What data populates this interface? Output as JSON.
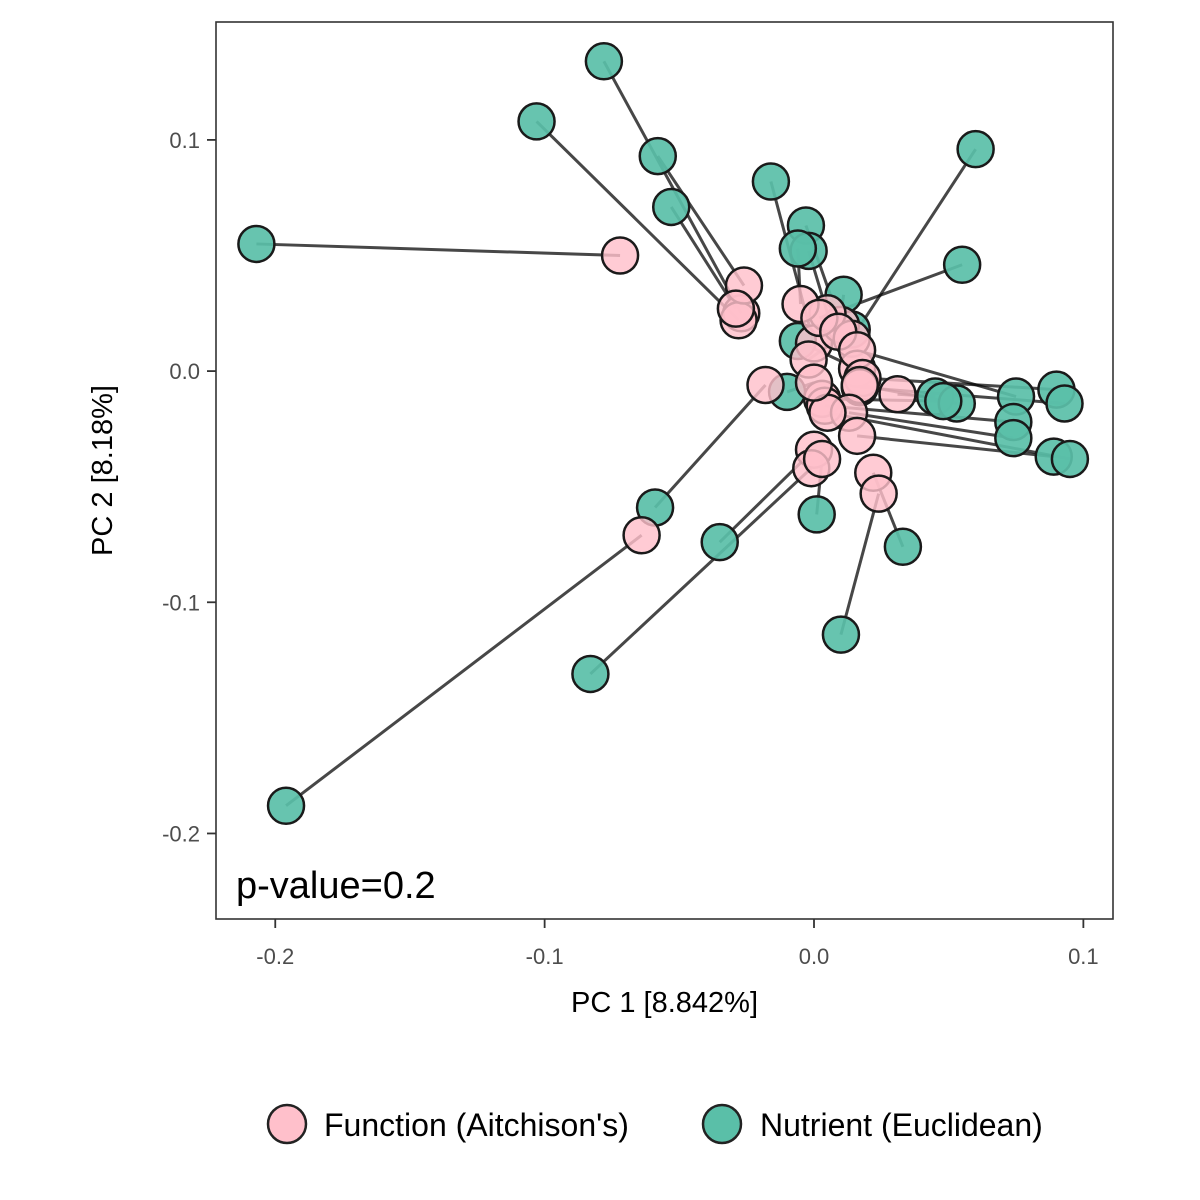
{
  "chart_data": {
    "type": "scatter",
    "xlabel": "PC 1 [8.842%]",
    "ylabel": "PC 2 [8.18%]",
    "annotation": "p-value=0.2",
    "xlim": [
      -0.222,
      0.111
    ],
    "ylim": [
      -0.237,
      0.151
    ],
    "x_ticks": [
      -0.2,
      -0.1,
      0.0,
      0.1
    ],
    "x_tick_labels": [
      "-0.2",
      "-0.1",
      "0.0",
      "0.1"
    ],
    "y_ticks": [
      -0.2,
      -0.1,
      0.0,
      0.1
    ],
    "y_tick_labels": [
      "-0.2",
      "-0.1",
      "0.0",
      "0.1"
    ],
    "grid": false,
    "legend_position": "bottom",
    "series": [
      {
        "name": "Function (Aitchison's)",
        "color": "#FFC0CB"
      },
      {
        "name": "Nutrient (Euclidean)",
        "color": "#5ABFA8"
      }
    ],
    "pairs": [
      {
        "function": [
          -0.072,
          0.05
        ],
        "nutrient": [
          -0.207,
          0.055
        ]
      },
      {
        "function": [
          -0.027,
          0.025
        ],
        "nutrient": [
          -0.078,
          0.134
        ]
      },
      {
        "function": [
          -0.028,
          0.022
        ],
        "nutrient": [
          -0.103,
          0.108
        ]
      },
      {
        "function": [
          -0.026,
          0.037
        ],
        "nutrient": [
          -0.058,
          0.093
        ]
      },
      {
        "function": [
          -0.029,
          0.027
        ],
        "nutrient": [
          -0.053,
          0.071
        ]
      },
      {
        "function": [
          0.0,
          0.012
        ],
        "nutrient": [
          -0.016,
          0.082
        ]
      },
      {
        "function": [
          0.01,
          0.02
        ],
        "nutrient": [
          -0.003,
          0.063
        ]
      },
      {
        "function": [
          0.005,
          0.025
        ],
        "nutrient": [
          -0.002,
          0.052
        ]
      },
      {
        "function": [
          -0.005,
          0.029
        ],
        "nutrient": [
          -0.006,
          0.053
        ]
      },
      {
        "function": [
          0.014,
          0.014
        ],
        "nutrient": [
          0.06,
          0.096
        ]
      },
      {
        "function": [
          0.002,
          0.023
        ],
        "nutrient": [
          0.055,
          0.046
        ]
      },
      {
        "function": [
          0.009,
          0.017
        ],
        "nutrient": [
          0.011,
          0.033
        ]
      },
      {
        "function": [
          -0.002,
          0.005
        ],
        "nutrient": [
          0.014,
          0.018
        ]
      },
      {
        "function": [
          0.016,
          0.001
        ],
        "nutrient": [
          -0.006,
          0.013
        ]
      },
      {
        "function": [
          0.016,
          0.009
        ],
        "nutrient": [
          0.075,
          -0.011
        ]
      },
      {
        "function": [
          0.018,
          -0.003
        ],
        "nutrient": [
          0.09,
          -0.008
        ]
      },
      {
        "function": [
          0.017,
          -0.007
        ],
        "nutrient": [
          0.093,
          -0.014
        ]
      },
      {
        "function": [
          0.031,
          -0.01
        ],
        "nutrient": [
          0.045,
          -0.011
        ]
      },
      {
        "function": [
          0.017,
          -0.006
        ],
        "nutrient": [
          0.053,
          -0.014
        ]
      },
      {
        "function": [
          0.003,
          -0.012
        ],
        "nutrient": [
          0.048,
          -0.013
        ]
      },
      {
        "function": [
          0.004,
          -0.015
        ],
        "nutrient": [
          0.074,
          -0.022
        ]
      },
      {
        "function": [
          0.013,
          -0.018
        ],
        "nutrient": [
          0.074,
          -0.029
        ]
      },
      {
        "function": [
          0.016,
          -0.028
        ],
        "nutrient": [
          0.089,
          -0.037
        ]
      },
      {
        "function": [
          0.005,
          -0.018
        ],
        "nutrient": [
          0.095,
          -0.038
        ]
      },
      {
        "function": [
          -0.018,
          -0.006
        ],
        "nutrient": [
          -0.059,
          -0.059
        ]
      },
      {
        "function": [
          -0.064,
          -0.071
        ],
        "nutrient": [
          -0.196,
          -0.188
        ]
      },
      {
        "function": [
          0.0,
          -0.034
        ],
        "nutrient": [
          -0.035,
          -0.074
        ]
      },
      {
        "function": [
          -0.001,
          -0.042
        ],
        "nutrient": [
          -0.083,
          -0.131
        ]
      },
      {
        "function": [
          0.0,
          -0.005
        ],
        "nutrient": [
          -0.01,
          -0.009
        ]
      },
      {
        "function": [
          0.022,
          -0.044
        ],
        "nutrient": [
          0.033,
          -0.076
        ]
      },
      {
        "function": [
          0.024,
          -0.053
        ],
        "nutrient": [
          0.01,
          -0.114
        ]
      },
      {
        "function": [
          0.003,
          -0.038
        ],
        "nutrient": [
          0.001,
          -0.062
        ]
      }
    ]
  }
}
